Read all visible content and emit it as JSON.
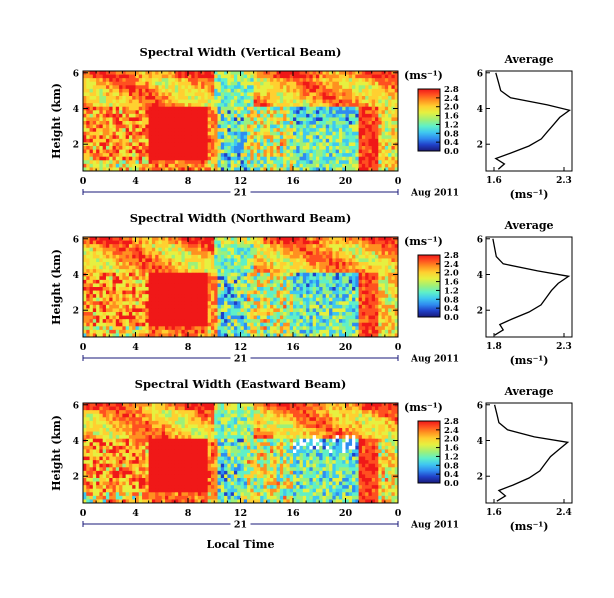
{
  "figure": {
    "colorbar_unit_label": "(ms⁻¹)",
    "colorbar_ticks": [
      "0.0",
      "0.4",
      "0.8",
      "1.2",
      "1.6",
      "2.0",
      "2.4",
      "2.8"
    ],
    "x_ticks": [
      "0",
      "4",
      "8",
      "12",
      "16",
      "20",
      "0"
    ],
    "day_label": "21",
    "month_label": "Aug 2011",
    "bottom_xlabel": "Local Time",
    "ylabel": "Height (km)",
    "y_ticks": [
      "2",
      "4",
      "6"
    ],
    "avg_title": "Average",
    "avg_xlabel": "(ms⁻¹)"
  },
  "palette": [
    "#1a1a7a",
    "#2040c8",
    "#2f8cf0",
    "#3fc8f0",
    "#5ff0c8",
    "#9cf07a",
    "#e6f040",
    "#ffd030",
    "#ff9020",
    "#ff5020",
    "#f01818"
  ],
  "chart_data": [
    {
      "type": "heatmap",
      "title": "Spectral Width (Vertical Beam)",
      "xlabel": "",
      "ylabel": "Height (km)",
      "x_unit": "local time (h), 21 Aug 2011",
      "xlim": [
        0,
        24
      ],
      "ylim": [
        0.5,
        6.1
      ],
      "colorbar": {
        "label": "(ms⁻¹)",
        "range": [
          0.0,
          2.8
        ],
        "ticks": [
          "0.0",
          "0.4",
          "0.8",
          "1.2",
          "1.6",
          "2.0",
          "2.4",
          "2.8"
        ]
      },
      "regions": [
        {
          "desc": "upper layer above 4 km (all times)",
          "value": 2.2
        },
        {
          "desc": "00-10 LT below 4 km",
          "value": 2.4
        },
        {
          "desc": "05-09.5 LT below 4 km",
          "value": 2.8
        },
        {
          "desc": "10-13 LT",
          "value": 1.2
        },
        {
          "desc": "13-21 LT below 4 km",
          "value": 1.0
        },
        {
          "desc": "21-23 LT below 4 km",
          "value": 2.6
        }
      ],
      "average_profile": {
        "title": "Average",
        "xlabel": "(ms⁻¹)",
        "xlim": [
          1.6,
          2.3
        ],
        "x_ticks": [
          "1.6",
          "2.3"
        ],
        "ylim": [
          0.5,
          6.1
        ],
        "y_ticks": [
          "2",
          "4",
          "6"
        ],
        "points": [
          [
            1.7,
            0.6
          ],
          [
            1.75,
            0.9
          ],
          [
            1.68,
            1.2
          ],
          [
            1.8,
            1.5
          ],
          [
            1.95,
            1.9
          ],
          [
            2.05,
            2.3
          ],
          [
            2.1,
            2.7
          ],
          [
            2.15,
            3.1
          ],
          [
            2.2,
            3.5
          ],
          [
            2.28,
            3.9
          ],
          [
            2.1,
            4.2
          ],
          [
            1.8,
            4.6
          ],
          [
            1.72,
            5.0
          ],
          [
            1.7,
            5.5
          ],
          [
            1.68,
            6.0
          ]
        ]
      }
    },
    {
      "type": "heatmap",
      "title": "Spectral Width (Northward Beam)",
      "xlabel": "",
      "ylabel": "Height (km)",
      "x_unit": "local time (h), 21 Aug 2011",
      "xlim": [
        0,
        24
      ],
      "ylim": [
        0.5,
        6.1
      ],
      "colorbar": {
        "label": "(ms⁻¹)",
        "range": [
          0.0,
          2.8
        ],
        "ticks": [
          "0.0",
          "0.4",
          "0.8",
          "1.2",
          "1.6",
          "2.0",
          "2.4",
          "2.8"
        ]
      },
      "regions": [
        {
          "desc": "upper layer above 4 km (all times)",
          "value": 2.2
        },
        {
          "desc": "00-10 LT below 4 km",
          "value": 2.4
        },
        {
          "desc": "05-09.5 LT below 4 km",
          "value": 2.8
        },
        {
          "desc": "10-13 LT",
          "value": 1.2
        },
        {
          "desc": "13-21 LT below 4 km",
          "value": 1.0
        },
        {
          "desc": "21-23 LT below 4 km",
          "value": 2.6
        }
      ],
      "average_profile": {
        "title": "Average",
        "xlabel": "(ms⁻¹)",
        "xlim": [
          1.8,
          2.3
        ],
        "x_ticks": [
          "1.8",
          "2.3"
        ],
        "ylim": [
          0.5,
          6.1
        ],
        "y_ticks": [
          "2",
          "4",
          "6"
        ],
        "points": [
          [
            1.85,
            0.6
          ],
          [
            1.9,
            0.9
          ],
          [
            1.88,
            1.2
          ],
          [
            1.95,
            1.5
          ],
          [
            2.05,
            1.9
          ],
          [
            2.12,
            2.3
          ],
          [
            2.15,
            2.7
          ],
          [
            2.18,
            3.1
          ],
          [
            2.22,
            3.5
          ],
          [
            2.28,
            3.9
          ],
          [
            2.1,
            4.2
          ],
          [
            1.9,
            4.6
          ],
          [
            1.86,
            5.0
          ],
          [
            1.85,
            5.5
          ],
          [
            1.84,
            6.0
          ]
        ]
      }
    },
    {
      "type": "heatmap",
      "title": "Spectral Width (Eastward Beam)",
      "xlabel": "Local Time",
      "ylabel": "Height (km)",
      "x_unit": "local time (h), 21 Aug 2011",
      "xlim": [
        0,
        24
      ],
      "ylim": [
        0.5,
        6.1
      ],
      "colorbar": {
        "label": "(ms⁻¹)",
        "range": [
          0.0,
          2.8
        ],
        "ticks": [
          "0.0",
          "0.4",
          "0.8",
          "1.2",
          "1.6",
          "2.0",
          "2.4",
          "2.8"
        ]
      },
      "regions": [
        {
          "desc": "upper layer above 4 km (all times)",
          "value": 2.2
        },
        {
          "desc": "00-10 LT below 4 km",
          "value": 2.4
        },
        {
          "desc": "05-09.5 LT below 4 km",
          "value": 2.8
        },
        {
          "desc": "10-13 LT",
          "value": 1.2
        },
        {
          "desc": "13-21 LT below 4 km",
          "value": 1.0
        },
        {
          "desc": "21-23 LT below 4 km",
          "value": 2.6
        }
      ],
      "average_profile": {
        "title": "Average",
        "xlabel": "(ms⁻¹)",
        "xlim": [
          1.6,
          2.4
        ],
        "x_ticks": [
          "1.6",
          "2.4"
        ],
        "ylim": [
          0.5,
          6.1
        ],
        "y_ticks": [
          "2",
          "4",
          "6"
        ],
        "points": [
          [
            1.7,
            0.6
          ],
          [
            1.78,
            0.9
          ],
          [
            1.72,
            1.2
          ],
          [
            1.85,
            1.5
          ],
          [
            2.0,
            1.9
          ],
          [
            2.1,
            2.3
          ],
          [
            2.15,
            2.7
          ],
          [
            2.2,
            3.1
          ],
          [
            2.28,
            3.5
          ],
          [
            2.36,
            3.9
          ],
          [
            2.05,
            4.2
          ],
          [
            1.8,
            4.6
          ],
          [
            1.72,
            5.0
          ],
          [
            1.7,
            5.5
          ],
          [
            1.68,
            6.0
          ]
        ]
      }
    }
  ]
}
